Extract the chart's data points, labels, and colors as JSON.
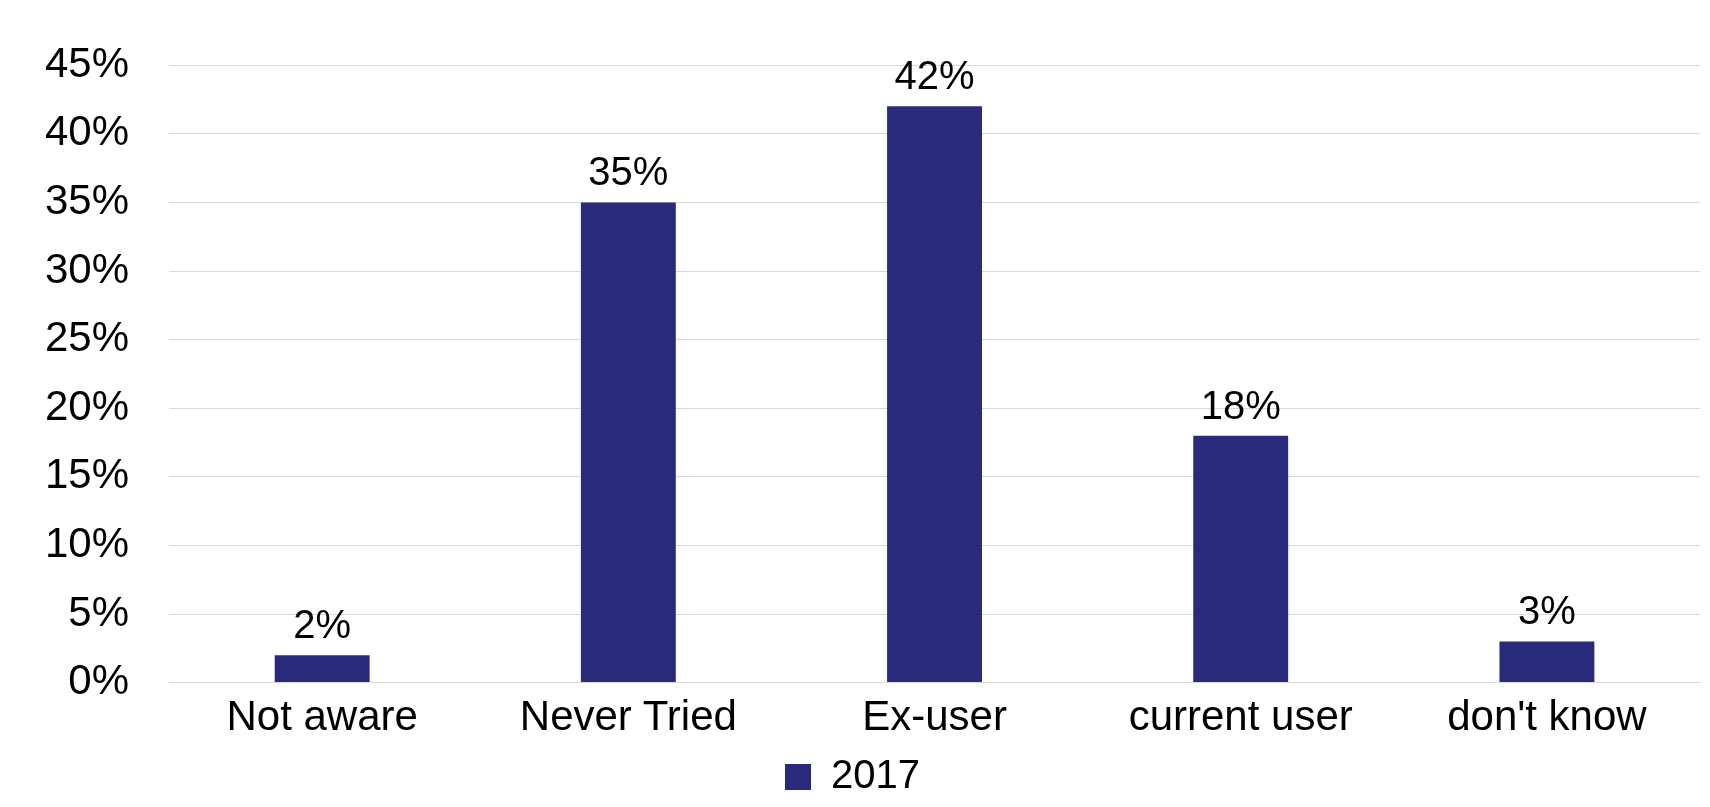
{
  "chart_data": {
    "type": "bar",
    "categories": [
      "Not aware",
      "Never Tried",
      "Ex-user",
      "current user",
      "don't know"
    ],
    "series": [
      {
        "name": "2017",
        "color": "#2a2a7c",
        "values": [
          2,
          35,
          42,
          18,
          3
        ],
        "value_labels": [
          "2%",
          "35%",
          "42%",
          "18%",
          "3%"
        ]
      }
    ],
    "ylim": [
      0,
      45
    ],
    "yticks": [
      {
        "value": 0,
        "label": "0%"
      },
      {
        "value": 5,
        "label": "5%"
      },
      {
        "value": 10,
        "label": "10%"
      },
      {
        "value": 15,
        "label": "15%"
      },
      {
        "value": 20,
        "label": "20%"
      },
      {
        "value": 25,
        "label": "25%"
      },
      {
        "value": 30,
        "label": "30%"
      },
      {
        "value": 35,
        "label": "35%"
      },
      {
        "value": 40,
        "label": "40%"
      },
      {
        "value": 45,
        "label": "45%"
      }
    ],
    "grid": "y",
    "legend": "bottom"
  }
}
